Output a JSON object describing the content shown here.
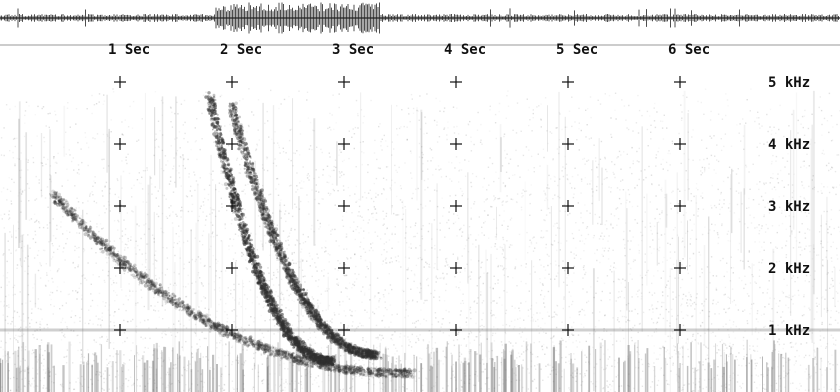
{
  "chart_data": {
    "type": "heatmap",
    "description_kind": "spectrogram",
    "x_unit_label_suffix": "Sec",
    "y_unit_label_suffix": "kHz",
    "x_ticks": [
      {
        "value": 1,
        "label": "1 Sec"
      },
      {
        "value": 2,
        "label": "2 Sec"
      },
      {
        "value": 3,
        "label": "3 Sec"
      },
      {
        "value": 4,
        "label": "4 Sec"
      },
      {
        "value": 5,
        "label": "5 Sec"
      },
      {
        "value": 6,
        "label": "6 Sec"
      }
    ],
    "y_ticks": [
      {
        "value": 5,
        "label": "5 kHz"
      },
      {
        "value": 4,
        "label": "4 kHz"
      },
      {
        "value": 3,
        "label": "3 kHz"
      },
      {
        "value": 2,
        "label": "2 kHz"
      },
      {
        "value": 1,
        "label": "1 kHz"
      }
    ],
    "xlim": [
      0,
      7.4
    ],
    "ylim": [
      0,
      6.3
    ],
    "calls": [
      {
        "start_time": 0.4,
        "start_khz": 3.2,
        "end_time": 3.6,
        "end_khz": 0.3,
        "intensity": 0.55
      },
      {
        "start_time": 1.8,
        "start_khz": 4.8,
        "end_time": 2.9,
        "end_khz": 0.5,
        "intensity": 0.85
      },
      {
        "start_time": 2.0,
        "start_khz": 4.6,
        "end_time": 3.3,
        "end_khz": 0.6,
        "intensity": 0.75
      }
    ],
    "grid_marker": "cross",
    "colors": {
      "background": "#ffffff",
      "ink": "#111111",
      "noise": "#8a8a8a",
      "call": "#303030"
    }
  }
}
